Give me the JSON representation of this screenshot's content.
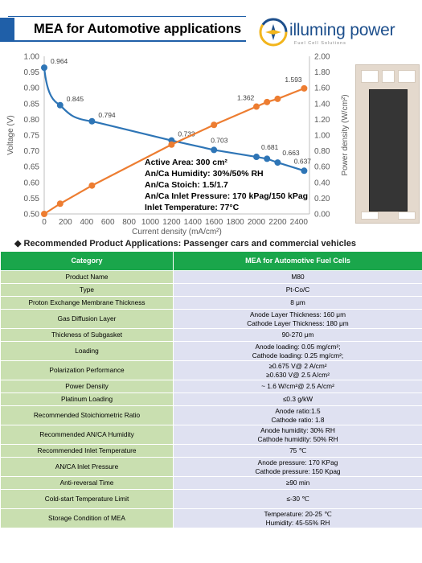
{
  "header": {
    "title": "MEA for Automotive applications"
  },
  "logo": {
    "text": "illuming power",
    "subtext": "Fuel Cell Solutions"
  },
  "chart_data": {
    "type": "line",
    "x": [
      0,
      150,
      450,
      1200,
      1600,
      2000,
      2100,
      2200,
      2450
    ],
    "xlabel": "Current density (mA/cm²)",
    "xticks": [
      0,
      200,
      400,
      600,
      800,
      1000,
      1200,
      1400,
      1600,
      1800,
      2000,
      2200,
      2400
    ],
    "xlim": [
      0,
      2500
    ],
    "ylabel": "Voltage (V)",
    "ylim": [
      0.5,
      1.0
    ],
    "yticks": [
      "0.50",
      "0.55",
      "0.60",
      "0.65",
      "0.70",
      "0.75",
      "0.80",
      "0.85",
      "0.90",
      "0.95",
      "1.00"
    ],
    "y2label": "Power density (W/cm²)",
    "y2lim": [
      0,
      2.0
    ],
    "y2ticks": [
      "0.00",
      "0.20",
      "0.40",
      "0.60",
      "0.80",
      "1.00",
      "1.20",
      "1.40",
      "1.60",
      "1.80",
      "2.00"
    ],
    "series": [
      {
        "axis": "left",
        "color": "#2e75b6",
        "values": [
          0.964,
          0.845,
          0.794,
          0.733,
          0.703,
          0.681,
          0.675,
          0.663,
          0.637
        ],
        "labels": [
          "0.964",
          "0.845",
          "0.794",
          "0.733",
          "",
          "0.681",
          "",
          "0.663",
          "0.637"
        ]
      },
      {
        "axis": "right",
        "color": "#ed7d31",
        "values": [
          0.0,
          0.13,
          0.36,
          0.88,
          1.13,
          1.362,
          1.42,
          1.46,
          1.593
        ],
        "labels": [
          "",
          "",
          "",
          "",
          "",
          "1.362",
          "",
          "",
          "1.593"
        ]
      }
    ],
    "extra_labels": [
      {
        "text": "0.703",
        "x": 1600,
        "y": 0.703
      }
    ],
    "annotations": [
      "Active Area: 300 cm²",
      "An/Ca Humidity: 30%/50% RH",
      "An/Ca Stoich: 1.5/1.7",
      "An/Ca Inlet Pressure: 170 kPag/150 kPag",
      "Inlet Temperature: 77°C"
    ],
    "grid": false
  },
  "recommended": "◆  Recommended Product Applications:  Passenger cars and commercial vehicles",
  "table": {
    "headers": [
      "Category",
      "MEA for Automotive Fuel Cells"
    ],
    "rows": [
      {
        "category": "Product Name",
        "value": [
          "M80"
        ]
      },
      {
        "category": "Type",
        "value": [
          "Pt-Co/C"
        ]
      },
      {
        "category": "Proton Exchange Membrane Thickness",
        "value": [
          "8 μm"
        ]
      },
      {
        "category": "Gas Diffusion Layer",
        "value": [
          "Anode Layer Thickness: 160 μm",
          "Cathode Layer Thickness: 180 μm"
        ]
      },
      {
        "category": "Thickness of Subgasket",
        "value": [
          "90-270 μm"
        ]
      },
      {
        "category": "Loading",
        "value": [
          "Anode loading: 0.05 mg/cm²;",
          "Cathode loading: 0.25 mg/cm²;"
        ]
      },
      {
        "category": "Polarization Performance",
        "value": [
          "≥0.675 V@ 2 A/cm²",
          "≥0.630 V@ 2.5 A/cm²"
        ]
      },
      {
        "category": "Power Density",
        "value": [
          "~ 1.6 W/cm²@ 2.5 A/cm²"
        ]
      },
      {
        "category": "Platinum Loading",
        "value": [
          "≤0.3 g/kW"
        ]
      },
      {
        "category": "Recommended Stoichiometric Ratio",
        "value": [
          "Anode ratio:1.5",
          "Cathode ratio: 1.8"
        ]
      },
      {
        "category": "Recommended AN/CA Humidity",
        "value": [
          "Anode humidity: 30% RH",
          "Cathode humidity: 50% RH"
        ]
      },
      {
        "category": "Recommended Inlet Temperature",
        "value": [
          "75 ℃"
        ]
      },
      {
        "category": "AN/CA Inlet Pressure",
        "value": [
          "Anode pressure: 170 KPag",
          "Cathode pressure: 150 Kpag"
        ]
      },
      {
        "category": "Anti-reversal Time",
        "value": [
          "≥90 min"
        ]
      },
      {
        "category": "Cold-start Temperature Limit",
        "value": [
          "≤-30 ℃"
        ]
      },
      {
        "category": "Storage Condition of MEA",
        "value": [
          "Temperature: 20-25 ℃",
          "Humidity: 45-55% RH"
        ]
      }
    ]
  }
}
